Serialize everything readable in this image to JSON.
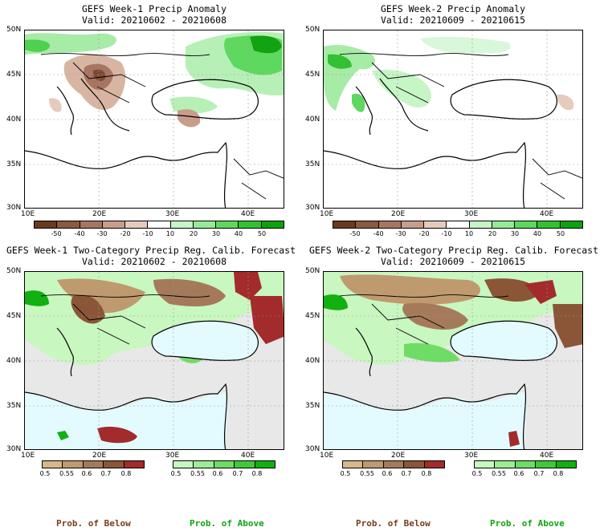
{
  "panels": [
    {
      "title": "GEFS Week-1 Precip Anomaly",
      "valid": "Valid: 20210602 - 20210608"
    },
    {
      "title": "GEFS Week-2 Precip Anomaly",
      "valid": "Valid: 20210609 - 20210615"
    },
    {
      "title": "GEFS Week-1 Two-Category Precip Reg. Calib. Forecast",
      "valid": "Valid: 20210602 - 20210608"
    },
    {
      "title": "GEFS Week-2 Two-Category Precip Reg. Calib. Forecast",
      "valid": "Valid: 20210609 - 20210615"
    }
  ],
  "lat_labels": [
    "50N",
    "45N",
    "40N",
    "35N",
    "30N"
  ],
  "lon_labels": [
    "10E",
    "20E",
    "30E",
    "40E"
  ],
  "anomaly_ticks": [
    "-50",
    "-40",
    "-30",
    "-20",
    "-10",
    "10",
    "20",
    "30",
    "40",
    "50"
  ],
  "anomaly_colors": [
    "#6b3a1e",
    "#8b5a40",
    "#a87563",
    "#c99d8a",
    "#e6cbbd",
    "#ffffff",
    "#c6f5c6",
    "#96ea96",
    "#5fd85f",
    "#33c133",
    "#0ea10e"
  ],
  "below_ticks": [
    "0.5",
    "0.55",
    "0.6",
    "0.7",
    "0.8"
  ],
  "below_colors": [
    "#d8b888",
    "#bf9a6e",
    "#a57a5a",
    "#8a5637",
    "#a32b2b"
  ],
  "above_ticks": [
    "0.5",
    "0.55",
    "0.6",
    "0.7",
    "0.8"
  ],
  "above_colors": [
    "#c8f7c0",
    "#9eec94",
    "#6fdc66",
    "#3fc93a",
    "#12b012"
  ],
  "labels": {
    "below": "Prob. of Below",
    "above": "Prob. of Above"
  },
  "label_colors": {
    "below": "#7a3b1d",
    "above": "#12a312"
  },
  "water_color": "#e3fbff",
  "land_nodata_color": "#e8e8e8"
}
